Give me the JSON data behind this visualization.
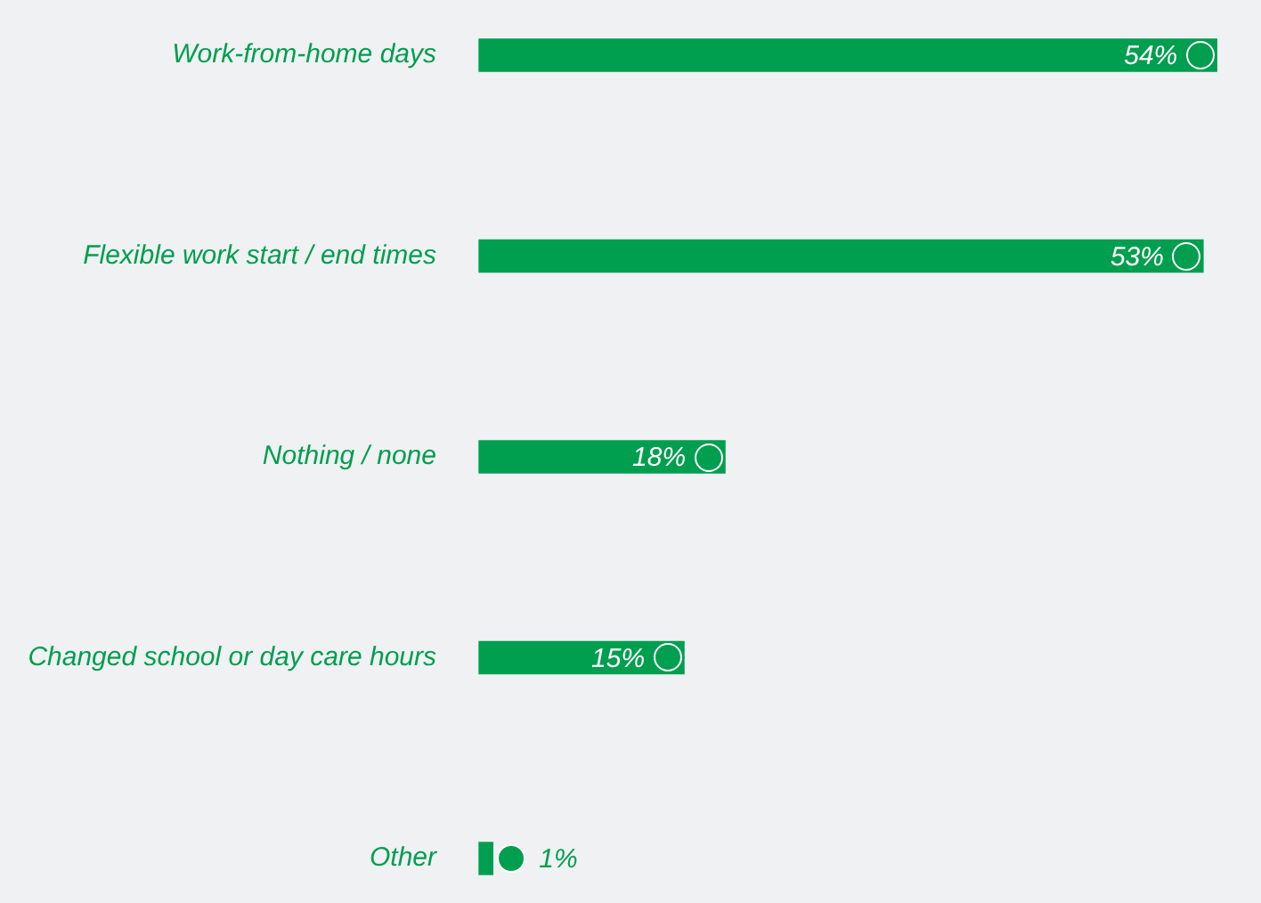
{
  "chart_data": {
    "type": "bar",
    "orientation": "horizontal",
    "categories": [
      "Work-from-home days",
      "Flexible work start / end times",
      "Nothing / none",
      "Changed school or day care hours",
      "Other"
    ],
    "values": [
      54,
      53,
      18,
      15,
      1
    ],
    "color": "#009e4f",
    "value_labels": [
      "54%",
      "53%",
      "18%",
      "15%",
      "1%"
    ],
    "tick_labels": "y"
  }
}
